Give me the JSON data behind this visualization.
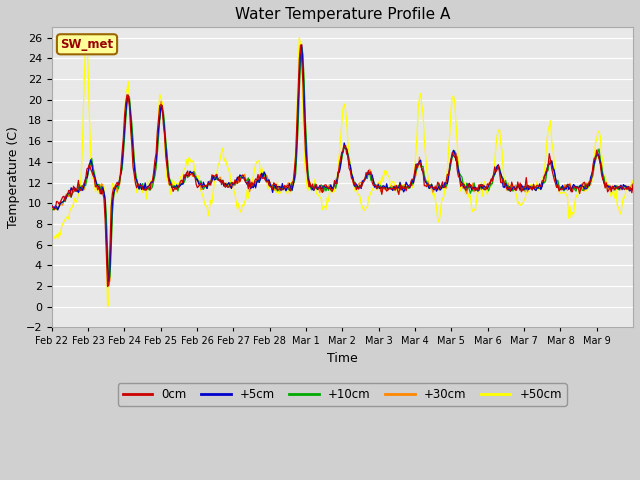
{
  "title": "Water Temperature Profile A",
  "xlabel": "Time",
  "ylabel": "Temperature (C)",
  "ylim": [
    -2,
    27
  ],
  "yticks": [
    -2,
    0,
    2,
    4,
    6,
    8,
    10,
    12,
    14,
    16,
    18,
    20,
    22,
    24,
    26
  ],
  "fig_bg_color": "#d0d0d0",
  "plot_bg_color": "#e8e8e8",
  "line_colors": {
    "0cm": "#cc0000",
    "+5cm": "#0000cc",
    "+10cm": "#00aa00",
    "+30cm": "#ff8800",
    "+50cm": "#ffff00"
  },
  "annotation_text": "SW_met",
  "annotation_color": "#990000",
  "annotation_bg": "#ffff99",
  "annotation_border": "#996600",
  "legend_labels": [
    "0cm",
    "+5cm",
    "+10cm",
    "+30cm",
    "+50cm"
  ],
  "num_points": 480,
  "xtick_labels": [
    "Feb 22",
    "Feb 23",
    "Feb 24",
    "Feb 25",
    "Feb 26",
    "Feb 27",
    "Feb 28",
    "Mar 1",
    "Mar 2",
    "Mar 3",
    "Mar 4",
    "Mar 5",
    "Mar 6",
    "Mar 7",
    "Mar 8",
    "Mar 9"
  ]
}
